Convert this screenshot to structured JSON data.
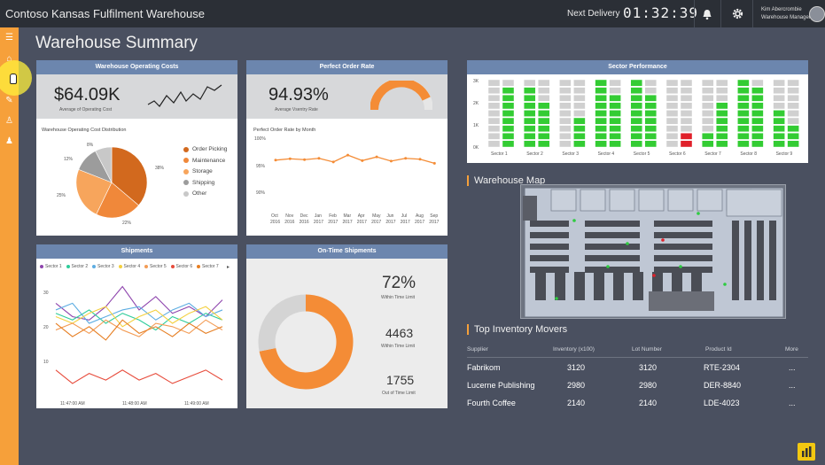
{
  "app_title": "Contoso Kansas Fulfilment Warehouse",
  "next_delivery_label": "Next Delivery",
  "next_delivery_time": "01:32:39",
  "user": {
    "name": "Kim Abercrombie",
    "role": "Warehouse Manager"
  },
  "page_title": "Warehouse Summary",
  "cards": {
    "operating_costs": {
      "title": "Warehouse Operating Costs",
      "value": "$64.09K",
      "value_caption": "Average of Operating Cost",
      "distribution_title": "Warehouse Operating Cost Distribution",
      "pie_labels": [
        "38%",
        "22%",
        "25%",
        "12%",
        "8%"
      ]
    },
    "perfect_order": {
      "title": "Perfect Order Rate",
      "value": "94.93%",
      "value_caption": "Average Vsentry Rate",
      "by_month_title": "Perfect Order Rate by Month",
      "y_ticks": [
        "100%",
        "95%",
        "90%"
      ]
    },
    "shipments": {
      "title": "Shipments",
      "y_ticks": [
        "30",
        "20",
        "10"
      ],
      "x_ticks": [
        "11:47:00 AM",
        "11:48:00 AM",
        "11:49:00 AM"
      ]
    },
    "ontime": {
      "title": "On-Time Shipments",
      "stat1_value": "72%",
      "stat1_label": "Within Time Limit",
      "stat2_value": "4463",
      "stat2_label": "Within Time Limit",
      "stat3_value": "1755",
      "stat3_label": "Out of Time Limit"
    },
    "sector_performance": {
      "title": "Sector Performance",
      "y_ticks": [
        "3K",
        "2K",
        "1K",
        "0K"
      ]
    }
  },
  "pie_legend": [
    {
      "label": "Order Picking",
      "color": "#d2691e"
    },
    {
      "label": "Maintenance",
      "color": "#f0883a"
    },
    {
      "label": "Storage",
      "color": "#f7a55c"
    },
    {
      "label": "Shipping",
      "color": "#9c9c9c"
    },
    {
      "label": "Other",
      "color": "#c8c8c8"
    }
  ],
  "shipment_legend": [
    {
      "label": "Sector 1",
      "color": "#8e44ad"
    },
    {
      "label": "Sector 2",
      "color": "#2ecc9a"
    },
    {
      "label": "Sector 3",
      "color": "#5dade2"
    },
    {
      "label": "Sector 4",
      "color": "#f4d03f"
    },
    {
      "label": "Sector 5",
      "color": "#f39c55"
    },
    {
      "label": "Sector 6",
      "color": "#e74c3c"
    },
    {
      "label": "Sector 7",
      "color": "#e67e22"
    }
  ],
  "month_ticks": [
    {
      "m": "Oct",
      "y": "2016"
    },
    {
      "m": "Nov",
      "y": "2016"
    },
    {
      "m": "Dec",
      "y": "2016"
    },
    {
      "m": "Jan",
      "y": "2017"
    },
    {
      "m": "Feb",
      "y": "2017"
    },
    {
      "m": "Mar",
      "y": "2017"
    },
    {
      "m": "Apr",
      "y": "2017"
    },
    {
      "m": "May",
      "y": "2017"
    },
    {
      "m": "Jun",
      "y": "2017"
    },
    {
      "m": "Jul",
      "y": "2017"
    },
    {
      "m": "Aug",
      "y": "2017"
    },
    {
      "m": "Sep",
      "y": "2017"
    }
  ],
  "sectors": [
    "Sector 1",
    "Sector 2",
    "Sector 3",
    "Sector 4",
    "Sector 5",
    "Sector 6",
    "Sector 7",
    "Sector 8",
    "Sector 9"
  ],
  "warehouse_map_title": "Warehouse Map",
  "inventory": {
    "title": "Top Inventory Movers",
    "columns": [
      "Supplier",
      "Inventory (x100)",
      "Lot Number",
      "Product Id",
      "More"
    ],
    "rows": [
      {
        "supplier": "Fabrikom",
        "inventory": "3120",
        "lot": "3120",
        "product": "RTE-2304",
        "more": "..."
      },
      {
        "supplier": "Lucerne Publishing",
        "inventory": "2980",
        "lot": "2980",
        "product": "DER-8840",
        "more": "..."
      },
      {
        "supplier": "Fourth Coffee",
        "inventory": "2140",
        "lot": "2140",
        "product": "LDE-4023",
        "more": "..."
      }
    ]
  },
  "icons": [
    "bell-icon",
    "gear-icon",
    "hamburger-icon",
    "home-icon",
    "edit-icon",
    "badge-icon",
    "person-icon",
    "powerbi-icon"
  ],
  "colors": {
    "accent": "#f6a03a",
    "card_header": "#6c86ae",
    "good": "#33cc33",
    "bad": "#e0202a"
  },
  "chart_data": [
    {
      "type": "pie",
      "title": "Warehouse Operating Cost Distribution",
      "categories": [
        "Order Picking",
        "Maintenance",
        "Storage",
        "Shipping",
        "Other"
      ],
      "values": [
        38,
        22,
        25,
        12,
        8
      ],
      "legend": "right"
    },
    {
      "type": "line",
      "title": "Perfect Order Rate by Month",
      "categories": [
        "Oct 2016",
        "Nov 2016",
        "Dec 2016",
        "Jan 2017",
        "Feb 2017",
        "Mar 2017",
        "Apr 2017",
        "May 2017",
        "Jun 2017",
        "Jul 2017",
        "Aug 2017",
        "Sep 2017"
      ],
      "values": [
        95.2,
        95.5,
        95.3,
        95.6,
        94.8,
        96.3,
        95.1,
        95.9,
        95.0,
        95.6,
        95.4,
        94.5
      ],
      "ylim": [
        88,
        100
      ]
    },
    {
      "type": "line",
      "title": "Shipments",
      "ylim": [
        0,
        35
      ],
      "series": [
        {
          "name": "Sector 1",
          "values": [
            28,
            24,
            23,
            27,
            33,
            26,
            30,
            25,
            27,
            24,
            29
          ]
        },
        {
          "name": "Sector 2",
          "values": [
            25,
            23,
            26,
            22,
            25,
            23,
            20,
            24,
            22,
            25,
            23
          ]
        },
        {
          "name": "Sector 3",
          "values": [
            26,
            28,
            22,
            24,
            26,
            27,
            23,
            26,
            28,
            24,
            26
          ]
        },
        {
          "name": "Sector 4",
          "values": [
            24,
            22,
            25,
            27,
            21,
            24,
            26,
            22,
            25,
            27,
            23
          ]
        },
        {
          "name": "Sector 5",
          "values": [
            20,
            22,
            19,
            23,
            20,
            18,
            22,
            21,
            19,
            23,
            20
          ]
        },
        {
          "name": "Sector 6",
          "values": [
            8,
            4,
            7,
            5,
            8,
            5,
            7,
            4,
            6,
            8,
            5
          ]
        },
        {
          "name": "Sector 7",
          "values": [
            22,
            18,
            21,
            17,
            23,
            19,
            21,
            18,
            22,
            19,
            21
          ]
        }
      ]
    },
    {
      "type": "pie",
      "title": "On-Time Shipments",
      "categories": [
        "Within Time Limit",
        "Out of Time Limit"
      ],
      "values": [
        4463,
        1755
      ]
    },
    {
      "type": "bar",
      "title": "Sector Performance",
      "categories": [
        "Sector 1",
        "Sector 2",
        "Sector 3",
        "Sector 4",
        "Sector 5",
        "Sector 6",
        "Sector 7",
        "Sector 8",
        "Sector 9"
      ],
      "series": [
        {
          "name": "Rack A",
          "values": [
            0,
            2700,
            0,
            2900,
            2900,
            0,
            500,
            2900,
            1800
          ]
        },
        {
          "name": "Rack B",
          "values": [
            2600,
            2100,
            1400,
            2200,
            2300,
            400,
            1900,
            2600,
            900
          ]
        }
      ],
      "ylim": [
        0,
        3000
      ]
    }
  ]
}
